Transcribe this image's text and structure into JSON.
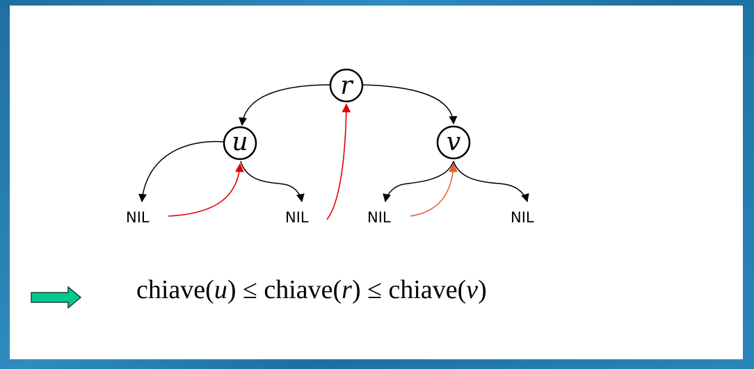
{
  "nodes": {
    "root": "r",
    "left_child": "u",
    "right_child": "v"
  },
  "leaves": [
    "NIL",
    "NIL",
    "NIL",
    "NIL"
  ],
  "colors": {
    "background_blue": "#1f6f9f",
    "slide_white": "#ffffff",
    "tree_edge": "#000000",
    "thread_red": "#e00000",
    "thread_orange": "#e85a2a",
    "arrow_fill": "#00c98f",
    "arrow_stroke": "#1f3c3a"
  },
  "formula": {
    "func1": "chiave(",
    "var1": "u",
    "close1": ")",
    "leq1": " ≤ ",
    "func2": "chiave(",
    "var2": "r",
    "close2": ")",
    "leq2": " ≤ ",
    "func3": "chiave(",
    "var3": "v",
    "close3": ")"
  },
  "implication_icon": "right-arrow-icon"
}
